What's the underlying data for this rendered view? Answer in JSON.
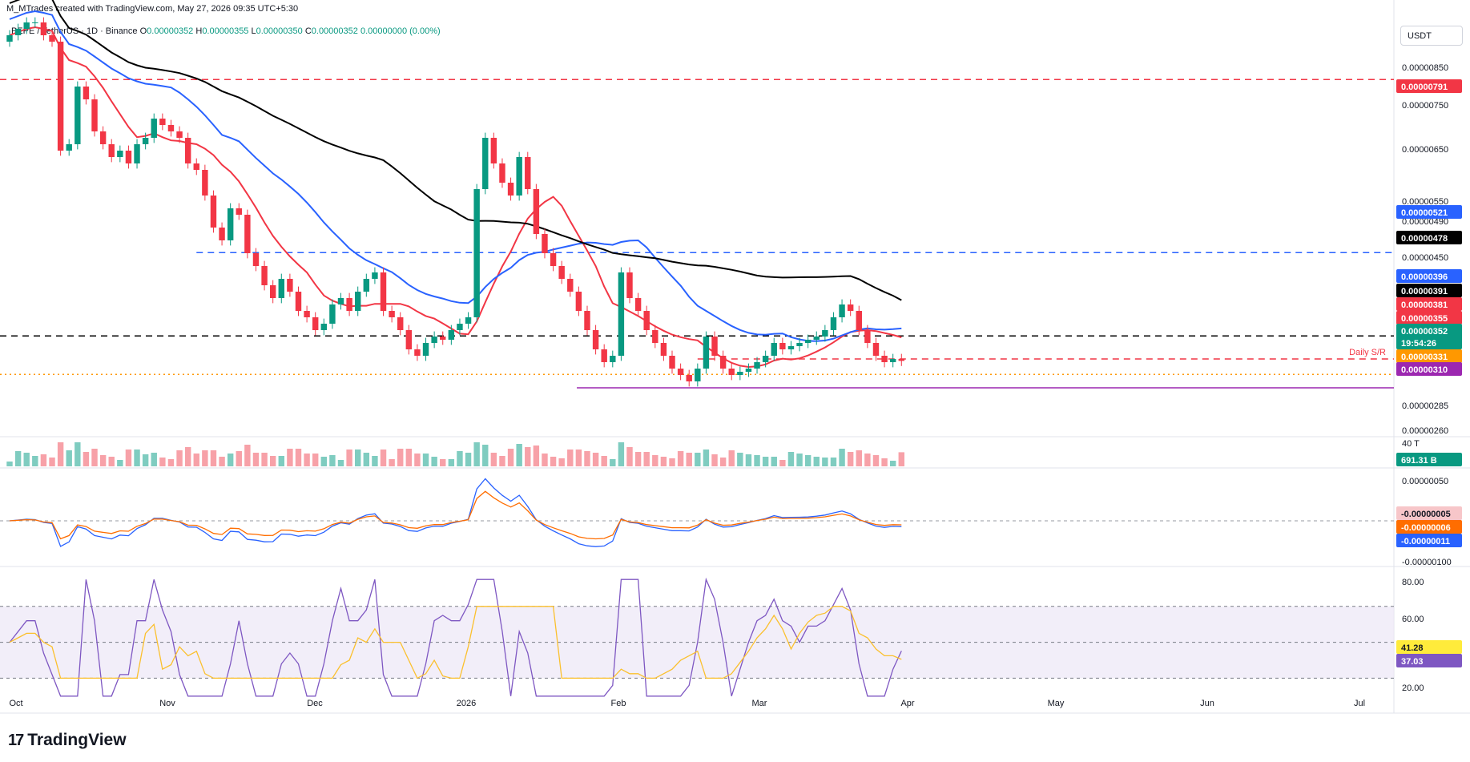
{
  "header": {
    "created_by": "M_MTrades created with TradingView.com, May 27, 2026 09:35 UTC+5:30"
  },
  "legend": {
    "symbol": "PEPE / TetherUS · 1D · Binance",
    "open_label": "O",
    "open": "0.00000352",
    "high_label": "H",
    "high": "0.00000355",
    "low_label": "L",
    "low": "0.00000350",
    "close_label": "C",
    "close": "0.00000352",
    "change": "0.00000000 (0.00%)"
  },
  "unit_label": "USDT",
  "brand": {
    "logo": "17",
    "name": "TradingView"
  },
  "chart_data": [
    {
      "type": "candlestick",
      "panel": "price",
      "x_ticks": [
        "Oct",
        "Nov",
        "Dec",
        "2026",
        "Feb",
        "Mar",
        "Apr",
        "May",
        "Jun",
        "Jul"
      ],
      "y_ticks": [
        "0.00000850",
        "0.00000750",
        "0.00000650",
        "0.00000550",
        "0.00000490",
        "0.00000450",
        "0.00000285",
        "0.00000260"
      ],
      "ylim": [
        2.4e-06,
        8.9e-06
      ],
      "ohlc_close": [
        8.6,
        8.7,
        8.8,
        8.8,
        8.6,
        8.5,
        6.8,
        6.9,
        7.8,
        7.6,
        7.1,
        6.9,
        6.7,
        6.8,
        6.6,
        6.9,
        7.0,
        7.3,
        7.2,
        7.1,
        7.0,
        6.6,
        6.5,
        6.1,
        5.6,
        5.4,
        5.9,
        5.8,
        5.2,
        5.0,
        4.7,
        4.5,
        4.8,
        4.6,
        4.3,
        4.2,
        4.0,
        4.1,
        4.4,
        4.5,
        4.3,
        4.6,
        4.8,
        4.9,
        4.3,
        4.2,
        4.0,
        3.7,
        3.6,
        3.8,
        3.9,
        3.85,
        4.0,
        4.1,
        4.2,
        6.2,
        7.0,
        6.6,
        6.3,
        6.1,
        6.7,
        6.2,
        5.5,
        5.2,
        5.0,
        4.8,
        4.6,
        4.3,
        4.0,
        3.7,
        3.5,
        3.6,
        4.9,
        4.5,
        4.3,
        4.0,
        3.8,
        3.6,
        3.4,
        3.3,
        3.2,
        3.4,
        3.9,
        3.6,
        3.4,
        3.3,
        3.35,
        3.4,
        3.5,
        3.6,
        3.8,
        3.7,
        3.75,
        3.8,
        3.85,
        3.9,
        4.0,
        4.2,
        4.4,
        4.3,
        4.0,
        3.8,
        3.6,
        3.5,
        3.55,
        3.52
      ],
      "moving_averages": [
        {
          "color": "#f23645",
          "label_value": "0.00000381"
        },
        {
          "color": "#2962ff",
          "label_value": "0.00000396"
        },
        {
          "color": "#000000",
          "label_value": "0.00000478"
        }
      ],
      "horizontal_levels": [
        {
          "value": "0.00000791",
          "color": "#f23645",
          "style": "dashed"
        },
        {
          "value": "0.00000521",
          "color": "#2962ff",
          "style": "dashed"
        },
        {
          "value": "0.00000391",
          "color": "#000000",
          "style": "dashed"
        },
        {
          "value": "0.00000355",
          "color": "#f23645",
          "style": "dashed",
          "annotation": "Daily S/R"
        },
        {
          "value": "0.00000331",
          "color": "#ff9800",
          "style": "dotted"
        },
        {
          "value": "0.00000310",
          "color": "#9c27b0",
          "style": "solid"
        }
      ],
      "price_badges": [
        {
          "value": "0.00000791",
          "color": "#f23645"
        },
        {
          "value": "0.00000521",
          "color": "#2962ff"
        },
        {
          "value": "0.00000478",
          "color": "#000000"
        },
        {
          "value": "0.00000396",
          "color": "#2962ff"
        },
        {
          "value": "0.00000391",
          "color": "#000000"
        },
        {
          "value": "0.00000381",
          "color": "#f23645"
        },
        {
          "value": "0.00000355",
          "color": "#f23645"
        },
        {
          "value": "0.00000352",
          "color": "#089981",
          "sub": "19:54:26"
        },
        {
          "value": "0.00000331",
          "color": "#ff9800"
        },
        {
          "value": "0.00000310",
          "color": "#9c27b0"
        }
      ]
    },
    {
      "type": "bar",
      "panel": "volume",
      "y_ticks": [
        "40 T"
      ],
      "badge": {
        "value": "691.31 B",
        "color": "#089981"
      }
    },
    {
      "type": "line",
      "panel": "macd",
      "y_ticks": [
        "0.00000050",
        "-0.00000100"
      ],
      "badges": [
        {
          "value": "-0.00000005",
          "color": "#f7c6c9"
        },
        {
          "value": "-0.00000006",
          "color": "#ff6d00"
        },
        {
          "value": "-0.00000011",
          "color": "#2962ff"
        }
      ]
    },
    {
      "type": "line",
      "panel": "rsi",
      "y_ticks": [
        "80.00",
        "60.00",
        "20.00"
      ],
      "ylim": [
        15,
        90
      ],
      "badges": [
        {
          "value": "41.28",
          "color": "#ffeb3b"
        },
        {
          "value": "37.03",
          "color": "#7e57c2"
        }
      ]
    }
  ]
}
